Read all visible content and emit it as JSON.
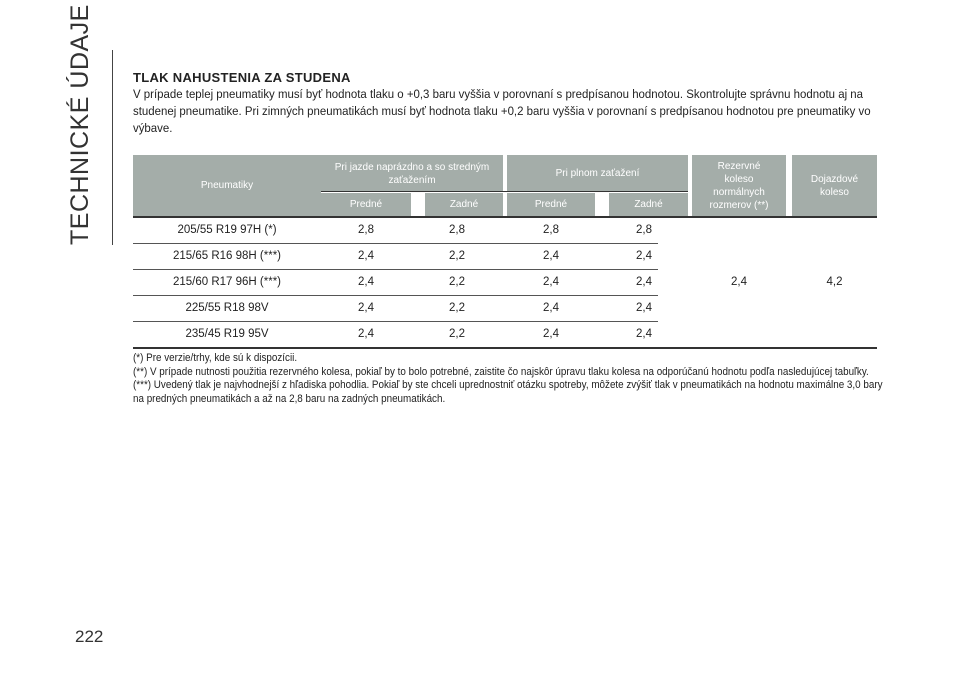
{
  "section_title": "TECHNICKÉ ÚDAJE",
  "page_number": "222",
  "heading": "TLAK NAHUSTENIA ZA STUDENA",
  "intro": "V prípade teplej pneumatiky musí byť hodnota tlaku o +0,3 baru vyššia v porovnaní s predpísanou hodnotou. Skontrolujte správnu hodnotu aj na studenej pneumatike. Pri zimných pneumatikách musí byť hodnota tlaku +0,2 baru vyššia v porovnaní s predpísanou hodnotou pre pneumatiky vo výbave.",
  "table": {
    "headers": {
      "tires": "Pneumatiky",
      "normal_load": "Pri jazde naprázdno a so stredným zaťažením",
      "full_load": "Pri plnom zaťažení",
      "front": "Predné",
      "rear": "Zadné",
      "spare": "Rezervné koleso normálnych rozmerov (**)",
      "temp_spare": "Dojazdové koleso"
    },
    "rows": [
      {
        "tire": "205/55 R19 97H (*)",
        "nf": "2,8",
        "nr": "2,8",
        "ff": "2,8",
        "fr": "2,8"
      },
      {
        "tire": "215/65 R16 98H (***)",
        "nf": "2,4",
        "nr": "2,2",
        "ff": "2,4",
        "fr": "2,4"
      },
      {
        "tire": "215/60 R17 96H (***)",
        "nf": "2,4",
        "nr": "2,2",
        "ff": "2,4",
        "fr": "2,4"
      },
      {
        "tire": "225/55 R18 98V",
        "nf": "2,4",
        "nr": "2,2",
        "ff": "2,4",
        "fr": "2,4"
      },
      {
        "tire": "235/45 R19 95V",
        "nf": "2,4",
        "nr": "2,2",
        "ff": "2,4",
        "fr": "2,4"
      }
    ],
    "spare_value": "2,4",
    "temp_spare_value": "4,2",
    "header_color": "#a4ada9"
  },
  "footnotes": [
    "(*) Pre verzie/trhy, kde sú k dispozícii.",
    "(**) V prípade nutnosti použitia rezervného kolesa, pokiaľ by to bolo potrebné, zaistite čo najskôr úpravu tlaku kolesa na odporúčanú hodnotu podľa nasledujúcej tabuľky.",
    "(***) Uvedený tlak je najvhodnejší z hľadiska pohodlia. Pokiaľ by ste chceli uprednostniť otázku spotreby, môžete zvýšiť tlak v pneumatikách na hodnotu maximálne 3,0 bary na predných pneumatikách a až na 2,8 baru na zadných pneumatikách."
  ]
}
